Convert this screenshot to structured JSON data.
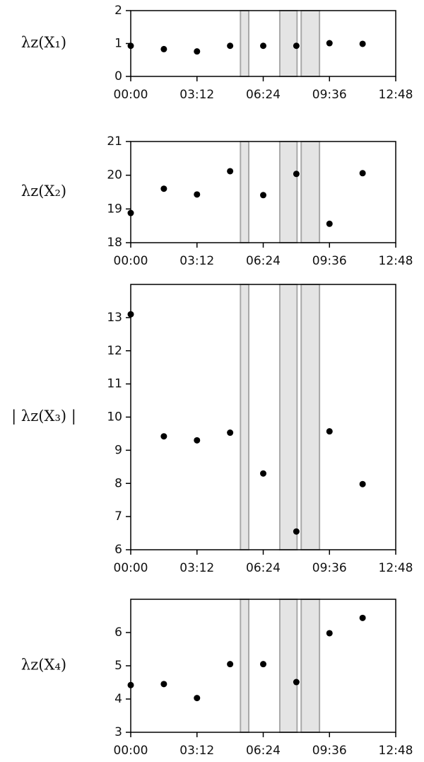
{
  "chart_data": [
    {
      "type": "scatter",
      "ylabel": "λz(X₁)",
      "color": "#000000",
      "shade_color": "#e4e4e4",
      "x": [
        0,
        96,
        192,
        288,
        384,
        480,
        576,
        672
      ],
      "values": [
        0.93,
        0.83,
        0.76,
        0.93,
        0.93,
        0.93,
        1.01,
        0.99
      ],
      "shaded_regions": [
        [
          318,
          342
        ],
        [
          432,
          482
        ],
        [
          494,
          547
        ]
      ],
      "xlim": [
        0,
        768
      ],
      "xticks": [
        {
          "value": 0,
          "label": "00:00"
        },
        {
          "value": 192,
          "label": "03:12"
        },
        {
          "value": 384,
          "label": "06:24"
        },
        {
          "value": 576,
          "label": "09:36"
        },
        {
          "value": 768,
          "label": "12:48"
        }
      ],
      "ylim": [
        0,
        2
      ],
      "yticks": [
        0,
        1,
        2
      ]
    },
    {
      "type": "scatter",
      "ylabel": "λz(X₂)",
      "color": "#000000",
      "shade_color": "#e4e4e4",
      "x": [
        0,
        96,
        192,
        288,
        384,
        480,
        576,
        672
      ],
      "values": [
        18.88,
        19.6,
        19.43,
        20.12,
        19.41,
        20.04,
        18.56,
        20.06
      ],
      "shaded_regions": [
        [
          318,
          342
        ],
        [
          432,
          482
        ],
        [
          494,
          547
        ]
      ],
      "xlim": [
        0,
        768
      ],
      "xticks": [
        {
          "value": 0,
          "label": "00:00"
        },
        {
          "value": 192,
          "label": "03:12"
        },
        {
          "value": 384,
          "label": "06:24"
        },
        {
          "value": 576,
          "label": "09:36"
        },
        {
          "value": 768,
          "label": "12:48"
        }
      ],
      "ylim": [
        18,
        21
      ],
      "yticks": [
        18,
        19,
        20,
        21
      ]
    },
    {
      "type": "scatter",
      "ylabel": "| λz(X₃) |",
      "color": "#000000",
      "shade_color": "#e4e4e4",
      "x": [
        0,
        96,
        192,
        288,
        384,
        480,
        576,
        672
      ],
      "values": [
        13.1,
        9.42,
        9.3,
        9.53,
        8.3,
        6.55,
        9.57,
        7.98
      ],
      "shaded_regions": [
        [
          318,
          342
        ],
        [
          432,
          482
        ],
        [
          494,
          547
        ]
      ],
      "xlim": [
        0,
        768
      ],
      "xticks": [
        {
          "value": 0,
          "label": "00:00"
        },
        {
          "value": 192,
          "label": "03:12"
        },
        {
          "value": 384,
          "label": "06:24"
        },
        {
          "value": 576,
          "label": "09:36"
        },
        {
          "value": 768,
          "label": "12:48"
        }
      ],
      "ylim": [
        6,
        14
      ],
      "yticks": [
        6,
        7,
        8,
        9,
        10,
        11,
        12,
        13
      ]
    },
    {
      "type": "scatter",
      "ylabel": "λz(X₄)",
      "color": "#000000",
      "shade_color": "#e4e4e4",
      "x": [
        0,
        96,
        192,
        288,
        384,
        480,
        576,
        672
      ],
      "values": [
        4.42,
        4.45,
        4.03,
        5.05,
        5.05,
        4.51,
        5.98,
        6.44
      ],
      "shaded_regions": [
        [
          318,
          342
        ],
        [
          432,
          482
        ],
        [
          494,
          547
        ]
      ],
      "xlim": [
        0,
        768
      ],
      "xticks": [
        {
          "value": 0,
          "label": "00:00"
        },
        {
          "value": 192,
          "label": "03:12"
        },
        {
          "value": 384,
          "label": "06:24"
        },
        {
          "value": 576,
          "label": "09:36"
        },
        {
          "value": 768,
          "label": "12:48"
        }
      ],
      "ylim": [
        3,
        7
      ],
      "yticks": [
        3,
        4,
        5,
        6
      ]
    }
  ]
}
